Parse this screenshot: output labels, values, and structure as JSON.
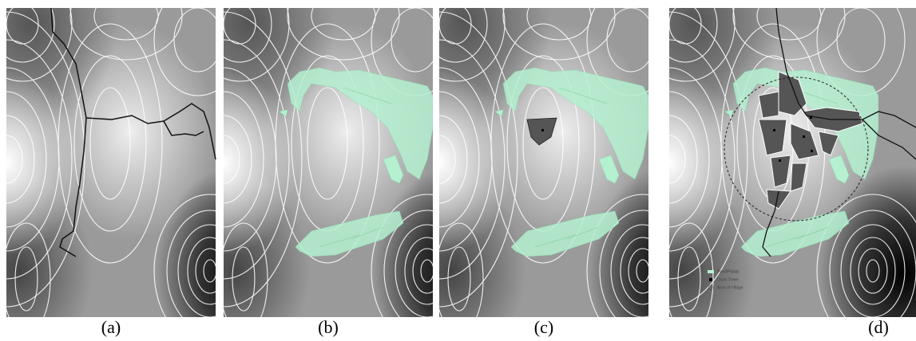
{
  "panels": [
    {
      "label": "(a)"
    },
    {
      "label": "(b)"
    },
    {
      "label": "(c)"
    },
    {
      "label": "(d)"
    }
  ],
  "legend": [
    {
      "label": "Pond/Paddy"
    },
    {
      "label": "Drum Tower"
    },
    {
      "label": "Area of Village"
    }
  ]
}
